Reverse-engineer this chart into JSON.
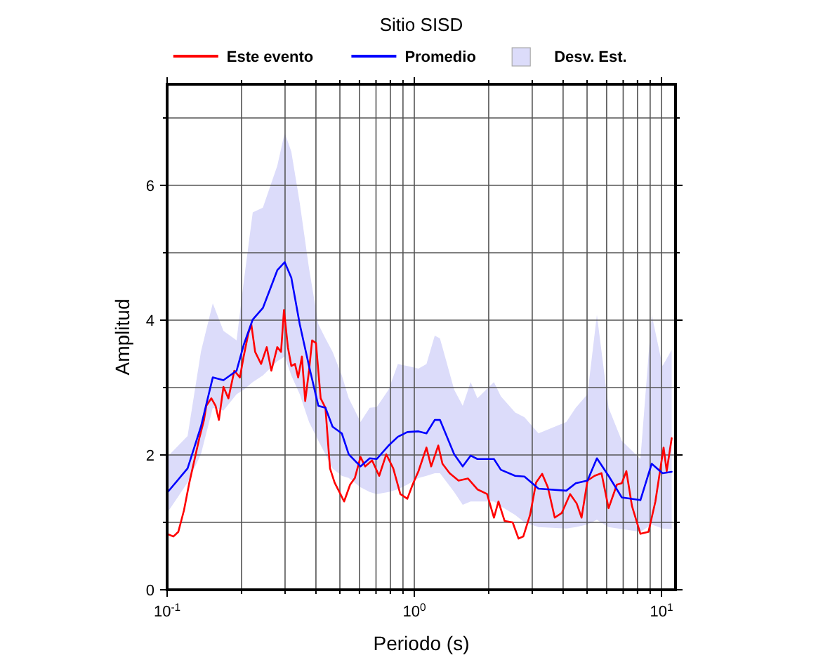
{
  "chart_data": {
    "type": "line",
    "title": "Sitio SISD",
    "xlabel": "Periodo (s)",
    "ylabel": "Amplitud",
    "log": "x",
    "grid": true,
    "legend": "top",
    "line_style": "solid",
    "marker": "none",
    "xlim": [
      0.1,
      11.4
    ],
    "ylim": [
      0,
      7.5
    ],
    "xticks": [
      {
        "value": 0.1,
        "label": "10$^{-1}$"
      },
      {
        "value": 0.2,
        "label": null
      },
      {
        "value": 0.3,
        "label": null
      },
      {
        "value": 0.4,
        "label": null
      },
      {
        "value": 0.5,
        "label": null
      },
      {
        "value": 0.6,
        "label": null
      },
      {
        "value": 0.7,
        "label": null
      },
      {
        "value": 0.8,
        "label": null
      },
      {
        "value": 0.9,
        "label": null
      },
      {
        "value": 1,
        "label": "10$^{0}$"
      },
      {
        "value": 2,
        "label": null
      },
      {
        "value": 3,
        "label": null
      },
      {
        "value": 4,
        "label": null
      },
      {
        "value": 5,
        "label": null
      },
      {
        "value": 6,
        "label": null
      },
      {
        "value": 7,
        "label": null
      },
      {
        "value": 8,
        "label": null
      },
      {
        "value": 9,
        "label": null
      },
      {
        "value": 10,
        "label": "10$^{1}$"
      }
    ],
    "yticks": [
      0,
      {
        "value": 1,
        "label": null
      },
      2,
      {
        "value": 3,
        "label": null
      },
      4,
      {
        "value": 5,
        "label": null
      },
      6,
      {
        "value": 7,
        "label": null
      }
    ],
    "series": [
      {
        "name": "Desv. Est.",
        "type": "area",
        "color": "#dcdcfa",
        "x": [
          0.1,
          0.121,
          0.137,
          0.153,
          0.169,
          0.191,
          0.204,
          0.222,
          0.244,
          0.279,
          0.299,
          0.318,
          0.344,
          0.375,
          0.409,
          0.437,
          0.467,
          0.509,
          0.543,
          0.606,
          0.66,
          0.705,
          0.787,
          0.858,
          0.937,
          1.04,
          1.12,
          1.21,
          1.27,
          1.45,
          1.57,
          1.69,
          1.8,
          2.1,
          2.24,
          2.56,
          2.79,
          3.18,
          4.12,
          4.5,
          5.02,
          5.48,
          6.11,
          6.91,
          8.22,
          9.13,
          10.1,
          11.0
        ],
        "values": [
          null,
          null,
          null,
          null,
          null,
          null,
          null,
          null,
          null,
          null,
          null,
          null,
          null,
          null,
          null,
          null,
          null,
          null,
          null,
          null,
          null,
          null,
          null,
          null,
          null,
          null,
          null,
          null,
          null,
          null,
          null,
          null,
          null,
          null,
          null,
          null,
          null,
          null,
          null,
          null,
          null,
          null,
          null,
          null,
          null,
          null,
          null,
          null
        ],
        "upper": [
          1.97,
          2.28,
          3.53,
          4.25,
          3.84,
          3.7,
          4.56,
          5.6,
          5.67,
          6.29,
          6.78,
          6.5,
          5.74,
          4.77,
          3.94,
          3.73,
          3.53,
          3.18,
          2.84,
          2.49,
          2.7,
          2.71,
          2.97,
          3.35,
          3.32,
          3.28,
          3.35,
          3.77,
          3.73,
          2.97,
          2.73,
          3.08,
          2.84,
          3.08,
          2.87,
          2.63,
          2.56,
          2.32,
          2.49,
          2.7,
          2.9,
          4.08,
          2.7,
          2.21,
          1.94,
          4.08,
          3.32,
          3.56
        ],
        "lower": [
          1.14,
          1.59,
          2.01,
          2.7,
          2.66,
          2.9,
          2.97,
          3.08,
          3.18,
          3.39,
          3.46,
          3.18,
          2.9,
          2.49,
          2.21,
          2.01,
          1.8,
          1.69,
          1.66,
          1.52,
          1.45,
          1.42,
          1.45,
          1.49,
          1.56,
          1.66,
          1.69,
          1.73,
          1.73,
          1.45,
          1.26,
          1.31,
          1.31,
          1.31,
          1.24,
          1.11,
          1.0,
          0.93,
          0.91,
          0.93,
          0.97,
          1.04,
          0.93,
          0.9,
          0.86,
          0.97,
          0.91,
          0.9
        ]
      },
      {
        "name": "Este evento",
        "color": "#ff0000",
        "x": [
          0.1,
          0.106,
          0.111,
          0.117,
          0.123,
          0.135,
          0.141,
          0.144,
          0.151,
          0.157,
          0.162,
          0.169,
          0.177,
          0.187,
          0.197,
          0.204,
          0.213,
          0.219,
          0.227,
          0.24,
          0.253,
          0.264,
          0.279,
          0.289,
          0.297,
          0.308,
          0.318,
          0.329,
          0.339,
          0.351,
          0.362,
          0.375,
          0.386,
          0.4,
          0.418,
          0.437,
          0.456,
          0.476,
          0.498,
          0.52,
          0.55,
          0.575,
          0.606,
          0.633,
          0.675,
          0.721,
          0.77,
          0.822,
          0.878,
          0.937,
          0.987,
          1.04,
          1.12,
          1.17,
          1.25,
          1.3,
          1.39,
          1.51,
          1.65,
          1.8,
          1.97,
          2.1,
          2.19,
          2.32,
          2.5,
          2.64,
          2.76,
          2.94,
          3.11,
          3.29,
          3.47,
          3.7,
          3.95,
          4.27,
          4.54,
          4.75,
          5.02,
          5.36,
          5.72,
          6.11,
          6.6,
          6.91,
          7.21,
          7.6,
          8.22,
          8.86,
          9.45,
          10.2,
          10.5,
          11.0
        ],
        "values": [
          0.83,
          0.79,
          0.86,
          1.18,
          1.59,
          2.25,
          2.52,
          2.73,
          2.84,
          2.73,
          2.52,
          3.01,
          2.84,
          3.25,
          3.15,
          3.46,
          3.8,
          3.94,
          3.53,
          3.35,
          3.6,
          3.25,
          3.6,
          3.53,
          4.15,
          3.6,
          3.32,
          3.35,
          3.15,
          3.46,
          2.8,
          3.25,
          3.7,
          3.66,
          2.84,
          2.7,
          1.8,
          1.59,
          1.45,
          1.31,
          1.56,
          1.66,
          1.97,
          1.83,
          1.92,
          1.69,
          2.01,
          1.8,
          1.42,
          1.35,
          1.57,
          1.76,
          2.11,
          1.83,
          2.14,
          1.87,
          1.73,
          1.62,
          1.65,
          1.49,
          1.42,
          1.07,
          1.31,
          1.02,
          1.0,
          0.76,
          0.79,
          1.11,
          1.59,
          1.72,
          1.52,
          1.07,
          1.14,
          1.42,
          1.28,
          1.07,
          1.62,
          1.69,
          1.73,
          1.21,
          1.56,
          1.58,
          1.76,
          1.24,
          0.83,
          0.86,
          1.31,
          2.11,
          1.76,
          2.25
        ]
      },
      {
        "name": "Promedio",
        "color": "#0000ff",
        "x": [
          0.1,
          0.121,
          0.137,
          0.153,
          0.169,
          0.191,
          0.204,
          0.222,
          0.244,
          0.279,
          0.299,
          0.318,
          0.344,
          0.375,
          0.409,
          0.437,
          0.467,
          0.509,
          0.543,
          0.606,
          0.66,
          0.705,
          0.787,
          0.858,
          0.937,
          1.04,
          1.12,
          1.21,
          1.27,
          1.45,
          1.57,
          1.69,
          1.8,
          2.1,
          2.24,
          2.56,
          2.79,
          3.18,
          4.12,
          4.5,
          5.02,
          5.48,
          6.11,
          6.91,
          8.22,
          9.13,
          10.1,
          11.0
        ],
        "values": [
          1.44,
          1.8,
          2.42,
          3.15,
          3.11,
          3.25,
          3.63,
          4.01,
          4.18,
          4.74,
          4.86,
          4.63,
          3.94,
          3.32,
          2.73,
          2.7,
          2.42,
          2.32,
          2.01,
          1.83,
          1.95,
          1.94,
          2.14,
          2.27,
          2.34,
          2.35,
          2.32,
          2.52,
          2.52,
          2.01,
          1.83,
          1.99,
          1.94,
          1.94,
          1.78,
          1.69,
          1.68,
          1.5,
          1.47,
          1.58,
          1.62,
          1.95,
          1.69,
          1.37,
          1.33,
          1.87,
          1.73,
          1.75
        ]
      }
    ]
  }
}
